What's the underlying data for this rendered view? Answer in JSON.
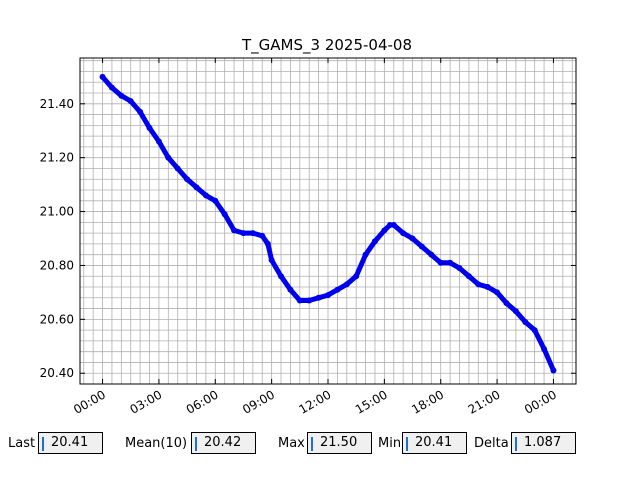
{
  "chart_data": {
    "type": "line",
    "title": "T_GAMS_3 2025-04-08",
    "xlabel": "",
    "ylabel": "",
    "x_tick_labels": [
      "00:00",
      "03:00",
      "06:00",
      "09:00",
      "12:00",
      "15:00",
      "18:00",
      "21:00",
      "00:00"
    ],
    "x_tick_hours": [
      0,
      3,
      6,
      9,
      12,
      15,
      18,
      21,
      24
    ],
    "x_range_hours": [
      -1.2,
      25.2
    ],
    "y_tick_labels": [
      "20.40",
      "20.60",
      "20.80",
      "21.00",
      "21.20",
      "21.40"
    ],
    "y_tick_values": [
      20.4,
      20.6,
      20.8,
      21.0,
      21.2,
      21.4
    ],
    "ylim": [
      20.36,
      21.57
    ],
    "grid": true,
    "series": [
      {
        "color": "#0000ee",
        "x_hours": [
          0.0,
          0.5,
          1.0,
          1.5,
          2.0,
          2.5,
          3.0,
          3.5,
          4.0,
          4.5,
          5.0,
          5.5,
          6.0,
          6.5,
          7.0,
          7.5,
          8.0,
          8.5,
          8.8,
          9.0,
          9.5,
          10.0,
          10.5,
          11.0,
          11.5,
          12.0,
          12.5,
          13.0,
          13.5,
          14.0,
          14.5,
          15.0,
          15.3,
          15.5,
          16.0,
          16.5,
          17.0,
          17.5,
          18.0,
          18.5,
          19.0,
          19.5,
          20.0,
          20.5,
          21.0,
          21.5,
          22.0,
          22.5,
          23.0,
          23.5,
          24.0
        ],
        "y_values": [
          21.5,
          21.46,
          21.43,
          21.41,
          21.37,
          21.31,
          21.26,
          21.2,
          21.16,
          21.12,
          21.09,
          21.06,
          21.04,
          20.99,
          20.93,
          20.92,
          20.92,
          20.91,
          20.88,
          20.82,
          20.76,
          20.71,
          20.67,
          20.67,
          20.68,
          20.69,
          20.71,
          20.73,
          20.76,
          20.84,
          20.89,
          20.93,
          20.95,
          20.95,
          20.92,
          20.9,
          20.87,
          20.84,
          20.81,
          20.81,
          20.79,
          20.76,
          20.73,
          20.72,
          20.7,
          20.66,
          20.63,
          20.59,
          20.56,
          20.49,
          20.41
        ]
      }
    ]
  },
  "stats": {
    "last_label": "Last",
    "last_value": "20.41",
    "mean_label": "Mean(10)",
    "mean_value": "20.42",
    "max_label": "Max",
    "max_value": "21.50",
    "min_label": "Min",
    "min_value": "20.41",
    "delta_label": "Delta",
    "delta_value": "1.087"
  }
}
